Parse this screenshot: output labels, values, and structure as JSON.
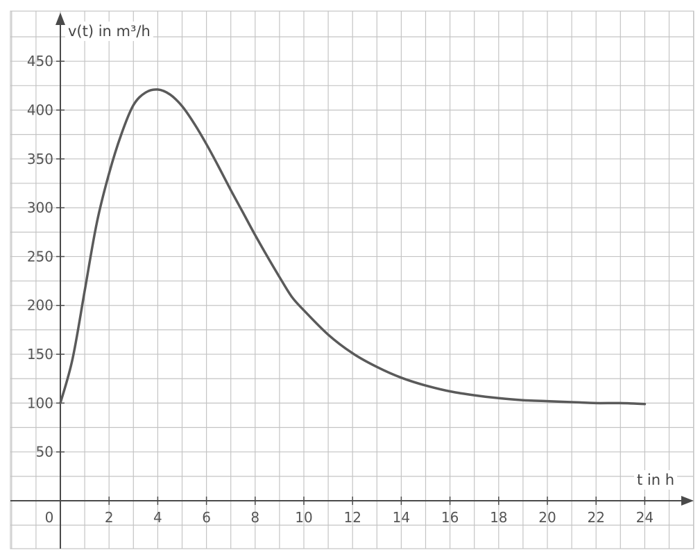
{
  "chart_data": {
    "type": "line",
    "title": "",
    "xlabel": "t in h",
    "ylabel": "v(t) in m³/h",
    "xlim": [
      0,
      24
    ],
    "ylim": [
      0,
      450
    ],
    "x_ticks": [
      0,
      2,
      4,
      6,
      8,
      10,
      12,
      14,
      16,
      18,
      20,
      22,
      24
    ],
    "y_ticks": [
      50,
      100,
      150,
      200,
      250,
      300,
      350,
      400,
      450
    ],
    "x_tick_labels": [
      "0",
      "2",
      "4",
      "6",
      "8",
      "10",
      "12",
      "14",
      "16",
      "18",
      "20",
      "22",
      "24"
    ],
    "y_tick_labels": [
      "50",
      "100",
      "150",
      "200",
      "250",
      "300",
      "350",
      "400",
      "450"
    ],
    "grid": true,
    "series": [
      {
        "name": "",
        "x": [
          0,
          0.5,
          1,
          1.5,
          2,
          2.5,
          3,
          3.5,
          4,
          4.5,
          5,
          5.5,
          6,
          6.5,
          7,
          7.5,
          8,
          8.5,
          9,
          9.5,
          10,
          11,
          12,
          13,
          14,
          15,
          16,
          17,
          18,
          19,
          20,
          21,
          22,
          23,
          24
        ],
        "y": [
          100,
          145,
          215,
          285,
          335,
          375,
          405,
          418,
          421,
          416,
          404,
          386,
          365,
          342,
          318,
          295,
          272,
          250,
          229,
          209,
          195,
          170,
          151,
          137,
          126,
          118,
          112,
          108,
          105,
          103,
          102,
          101,
          100,
          100,
          99
        ]
      }
    ],
    "colors": {
      "curve": "#5a5a5a",
      "grid": "#c4c4c4",
      "axis": "#4a4a4a"
    }
  }
}
